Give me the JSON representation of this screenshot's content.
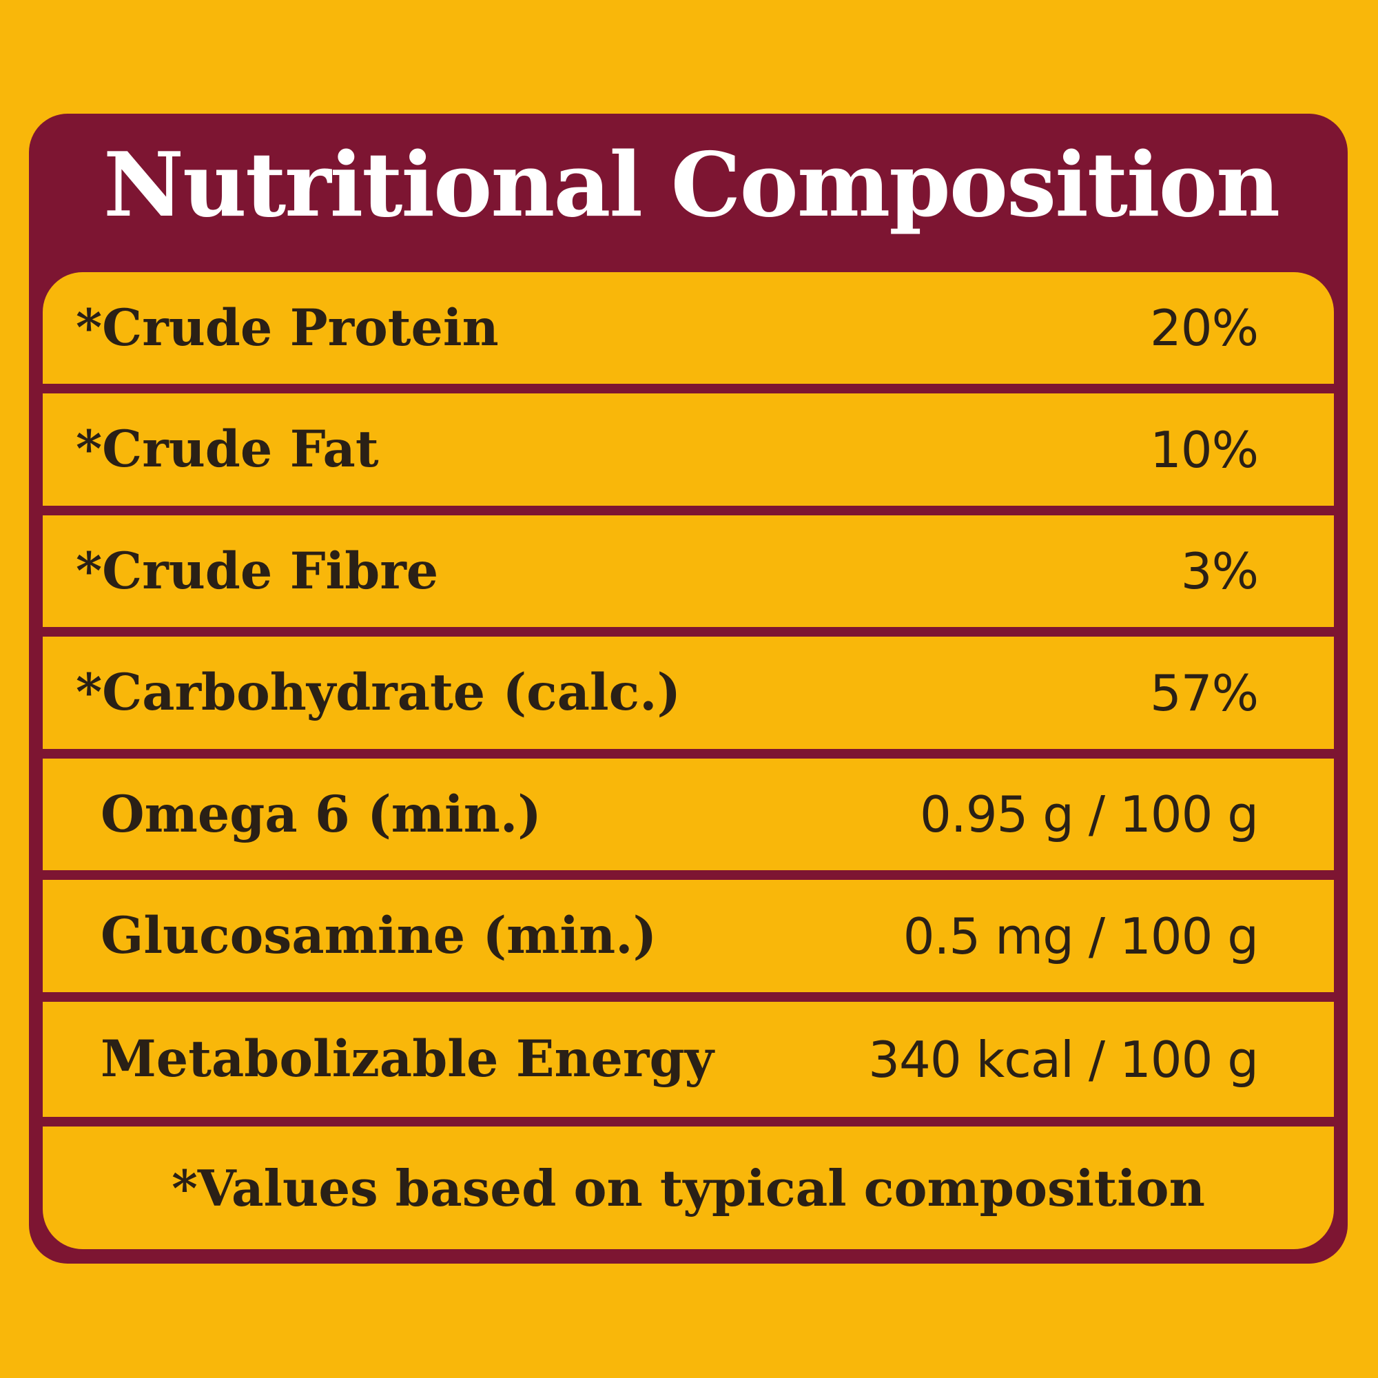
{
  "title": "Nutritional Composition",
  "colors": {
    "background": "#F9B70A",
    "panel": "#7D1532",
    "title_text": "#FFFFFF",
    "body_text": "#2A2016"
  },
  "rows": [
    {
      "label": "*Crude Protein",
      "value": "20%"
    },
    {
      "label": "*Crude Fat",
      "value": "10%"
    },
    {
      "label": "*Crude Fibre",
      "value": "3%"
    },
    {
      "label": "*Carbohydrate (calc.)",
      "value": "57%"
    },
    {
      "label": "Omega 6 (min.)",
      "value": "0.95 g / 100 g"
    },
    {
      "label": "Glucosamine (min.)",
      "value": "0.5 mg / 100 g"
    },
    {
      "label": "Metabolizable Energy",
      "value": "340 kcal / 100 g"
    }
  ],
  "footnote": "*Values based on typical composition"
}
